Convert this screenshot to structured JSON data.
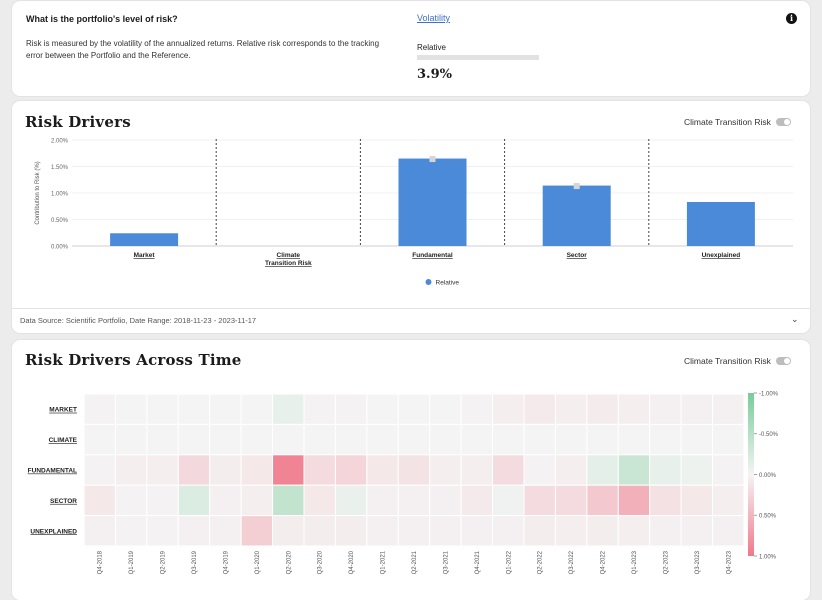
{
  "risk_question": {
    "title": "What is the portfolio's level of risk?",
    "description": "Risk is measured by the volatility of the annualized returns. Relative risk corresponds to the tracking error between the Portfolio and the Reference.",
    "metric_link": "Volatility",
    "relative_label": "Relative",
    "relative_value": "3.9%",
    "info_icon": "info-icon"
  },
  "risk_drivers": {
    "title": "Risk Drivers",
    "toggle_label": "Climate Transition Risk",
    "toggle_on": false,
    "footer": "Data Source: Scientific Portfolio, Date Range: 2018-11-23 - 2023-11-17",
    "chevron_icon": "chevron-down-icon"
  },
  "risk_time": {
    "title": "Risk Drivers Across Time",
    "toggle_label": "Climate Transition Risk",
    "toggle_on": false
  },
  "colors": {
    "bar": "#4a8ad9",
    "positive": "#f0788a",
    "negative": "#78cc98"
  },
  "chart_data": [
    {
      "type": "bar",
      "title": "Risk Drivers",
      "ylabel": "Contribution to Risk (%)",
      "categories": [
        "Market",
        "Climate Transition Risk",
        "Fundamental",
        "Sector",
        "Unexplained"
      ],
      "category_lines": [
        [
          "Market"
        ],
        [
          "Climate",
          "Transition Risk"
        ],
        [
          "Fundamental"
        ],
        [
          "Sector"
        ],
        [
          "Unexplained"
        ]
      ],
      "series": [
        {
          "name": "Relative",
          "values": [
            0.24,
            0.0,
            1.65,
            1.14,
            0.83
          ]
        }
      ],
      "error_markers": [
        null,
        null,
        1.65,
        1.14,
        null
      ],
      "yticks": [
        "0.00%",
        "0.50%",
        "1.00%",
        "1.50%",
        "2.00%"
      ],
      "ylim": [
        0,
        2.0
      ],
      "legend": "bottom-center"
    },
    {
      "type": "heatmap",
      "title": "Risk Drivers Across Time",
      "rows": [
        "MARKET",
        "CLIMATE",
        "FUNDAMENTAL",
        "SECTOR",
        "UNEXPLAINED"
      ],
      "columns": [
        "Q4-2018",
        "Q1-2019",
        "Q2-2019",
        "Q3-2019",
        "Q4-2019",
        "Q1-2020",
        "Q2-2020",
        "Q3-2020",
        "Q4-2020",
        "Q1-2021",
        "Q2-2021",
        "Q3-2021",
        "Q4-2021",
        "Q1-2022",
        "Q2-2022",
        "Q3-2022",
        "Q4-2022",
        "Q1-2023",
        "Q2-2023",
        "Q3-2023",
        "Q4-2023"
      ],
      "values": [
        [
          0.02,
          0.0,
          0.0,
          0.0,
          0.0,
          0.0,
          -0.1,
          0.02,
          0.02,
          0.0,
          0.0,
          0.0,
          0.02,
          0.05,
          0.08,
          0.05,
          0.07,
          0.05,
          0.04,
          0.03,
          0.03
        ],
        [
          0.0,
          0.0,
          0.0,
          0.0,
          0.0,
          0.0,
          0.0,
          0.0,
          0.0,
          0.0,
          0.0,
          0.0,
          0.0,
          0.0,
          0.0,
          0.0,
          0.0,
          0.0,
          0.0,
          0.0,
          0.0
        ],
        [
          0.02,
          0.05,
          0.05,
          0.22,
          0.06,
          0.1,
          0.9,
          0.2,
          0.25,
          0.1,
          0.14,
          0.05,
          0.05,
          0.2,
          0.02,
          0.05,
          -0.12,
          -0.35,
          -0.1,
          -0.06,
          0.02
        ],
        [
          0.1,
          0.02,
          0.02,
          -0.2,
          0.04,
          0.05,
          -0.4,
          0.1,
          -0.08,
          0.04,
          0.04,
          0.03,
          0.08,
          -0.04,
          0.2,
          0.2,
          0.35,
          0.55,
          0.15,
          0.1,
          0.05
        ],
        [
          0.03,
          0.02,
          0.02,
          0.03,
          0.04,
          0.3,
          0.06,
          0.06,
          0.06,
          0.04,
          0.04,
          0.03,
          0.04,
          0.04,
          0.06,
          0.05,
          0.06,
          0.05,
          0.04,
          0.04,
          0.03
        ]
      ],
      "color_scale": {
        "min": -1.0,
        "max": 1.0,
        "ticks": [
          "-1.00%",
          "-0.50%",
          "0.00%",
          "0.50%",
          "1.00%"
        ]
      }
    }
  ]
}
